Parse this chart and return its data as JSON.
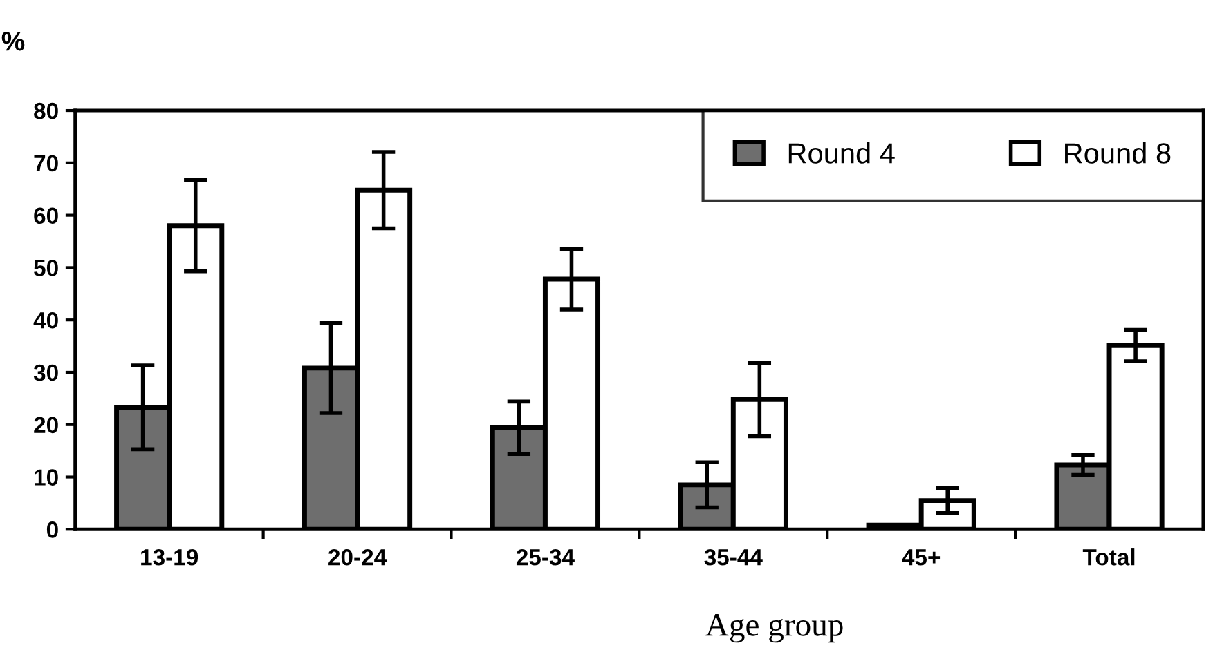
{
  "chart_data": {
    "type": "bar",
    "ylabel": "%",
    "xlabel": "Age group",
    "categories": [
      "13-19",
      "20-24",
      "25-34",
      "35-44",
      "45+",
      "Total"
    ],
    "series": [
      {
        "name": "Round 4",
        "color": "#6e6e6e",
        "values": [
          23.3,
          30.8,
          19.4,
          8.5,
          0.8,
          12.3
        ],
        "errors": [
          8,
          8.6,
          5,
          4.3,
          null,
          1.9
        ]
      },
      {
        "name": "Round 8",
        "color": "#ffffff",
        "values": [
          58,
          64.8,
          47.8,
          24.8,
          5.5,
          35.1
        ],
        "errors": [
          8.7,
          7.3,
          5.8,
          7,
          2.4,
          3
        ]
      }
    ],
    "ylim": [
      0,
      80
    ],
    "yticks": [
      0,
      10,
      20,
      30,
      40,
      50,
      60,
      70,
      80
    ],
    "grid": false,
    "legend": "top right"
  }
}
